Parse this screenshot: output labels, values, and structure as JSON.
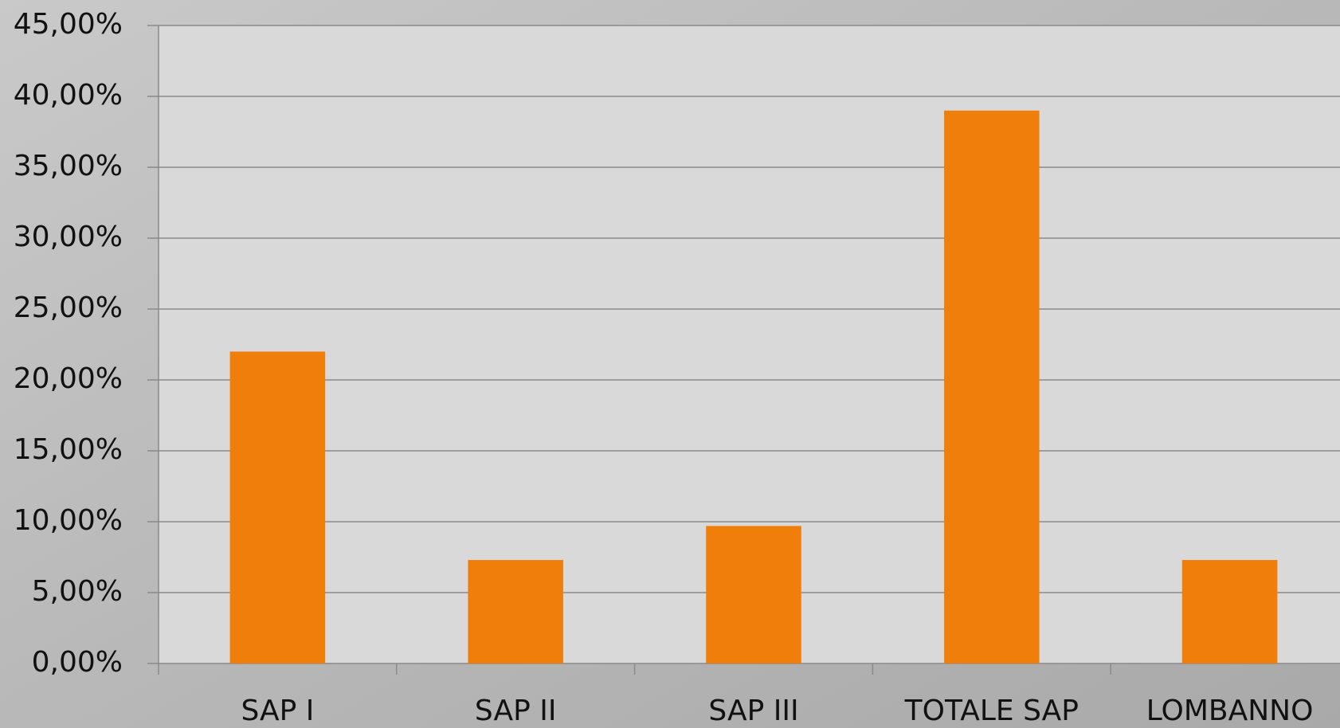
{
  "chart_data": {
    "type": "bar",
    "categories": [
      "SAP I",
      "SAP II",
      "SAP III",
      "TOTALE SAP",
      "LOMBANNO"
    ],
    "values": [
      22.0,
      7.3,
      9.7,
      39.0,
      7.3
    ],
    "color": "#ef7f0a",
    "ylim": [
      0,
      45
    ],
    "yticks": [
      {
        "value": 0,
        "label": "0,00%"
      },
      {
        "value": 5,
        "label": "5,00%"
      },
      {
        "value": 10,
        "label": "10,00%"
      },
      {
        "value": 15,
        "label": "15,00%"
      },
      {
        "value": 20,
        "label": "20,00%"
      },
      {
        "value": 25,
        "label": "25,00%"
      },
      {
        "value": 30,
        "label": "30,00%"
      },
      {
        "value": 35,
        "label": "35,00%"
      },
      {
        "value": 40,
        "label": "40,00%"
      },
      {
        "value": 45,
        "label": "45,00%"
      }
    ],
    "grid": true
  }
}
